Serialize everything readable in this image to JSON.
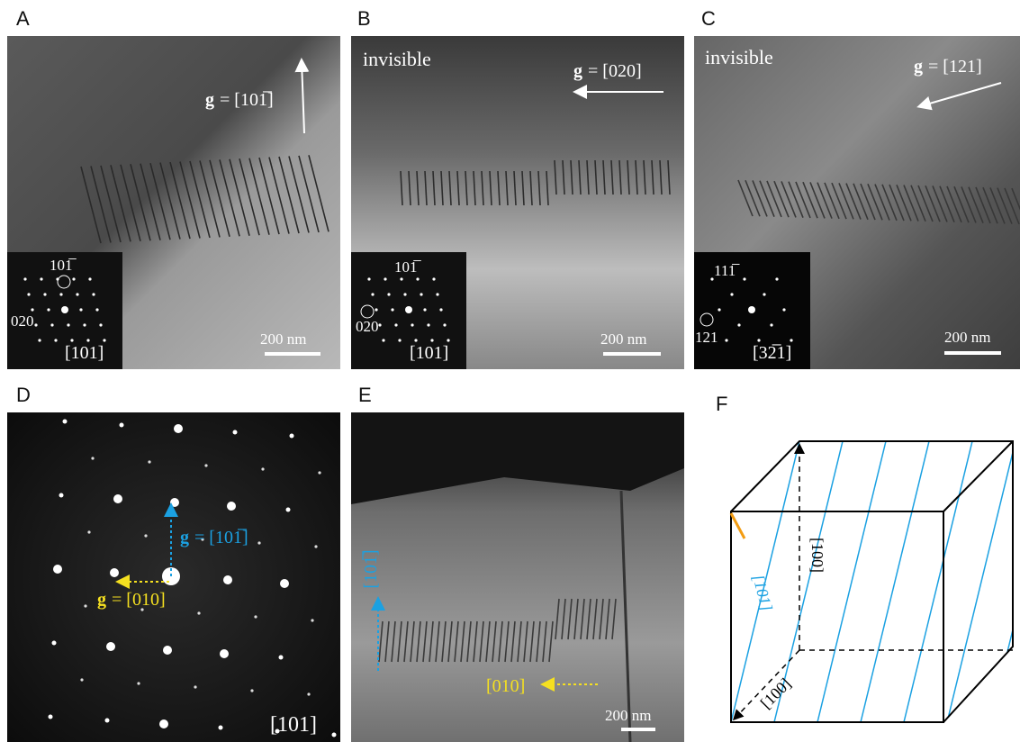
{
  "panels": [
    {
      "label": "A",
      "g_symbol": "g",
      "g_value": "= [101̅]",
      "inset": {
        "spot_1": "101̅",
        "spot_2": "020",
        "zone_axis": "[101]"
      },
      "scale_bar": "200 nm"
    },
    {
      "label": "B",
      "note": "invisible",
      "g_symbol": "g",
      "g_value": "= [020]",
      "inset": {
        "spot_1": "101̅",
        "spot_2": "020",
        "zone_axis": "[101]"
      },
      "scale_bar": "200 nm"
    },
    {
      "label": "C",
      "note": "invisible",
      "g_symbol": "g",
      "g_value": "= [121]",
      "inset": {
        "spot_1": "111̅",
        "spot_2": "121",
        "zone_axis": "[32̅1]"
      },
      "scale_bar": "200 nm"
    },
    {
      "label": "D",
      "g1_symbol": "g",
      "g1_value": "= [101̅]",
      "g2_symbol": "g",
      "g2_value": "= [010]",
      "zone_axis": "[101]"
    },
    {
      "label": "E",
      "arrow_1": "[101̅]",
      "arrow_2": "[010]",
      "scale_bar": "200 nm"
    },
    {
      "label": "F",
      "line_direction": "[101]",
      "axis_vertical": "[100]",
      "axis_diagonal": "[100]"
    }
  ]
}
